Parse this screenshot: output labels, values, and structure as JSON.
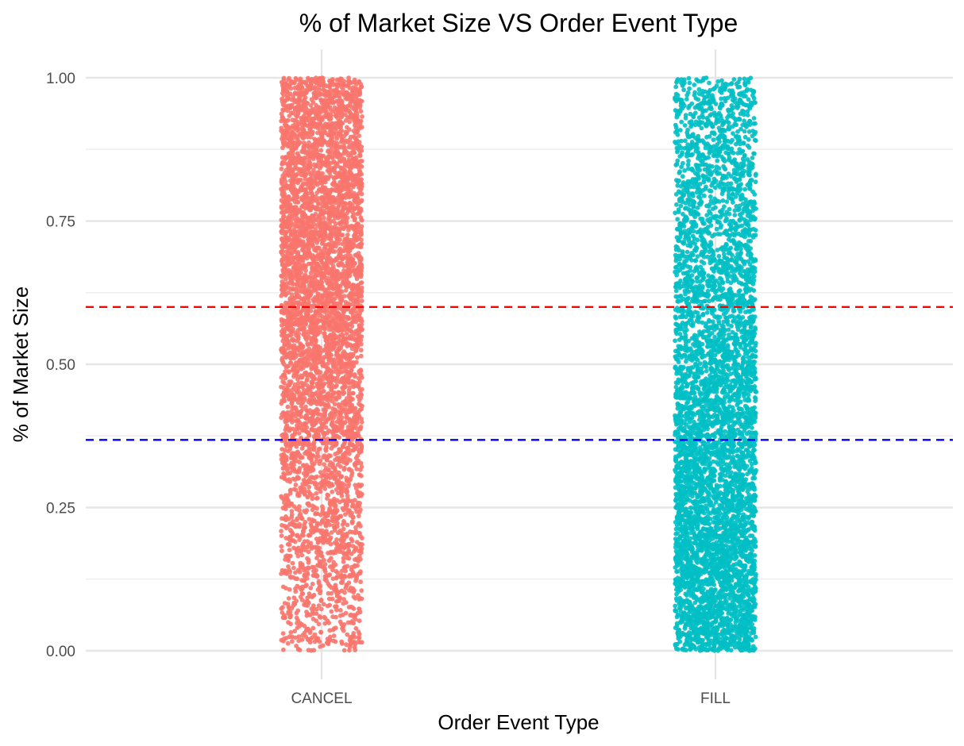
{
  "chart_data": {
    "type": "scatter",
    "subtype": "jitter-strip",
    "title": "% of Market Size VS Order Event Type",
    "xlabel": "Order Event Type",
    "ylabel": "% of Market Size",
    "categories": [
      "CANCEL",
      "FILL"
    ],
    "ylim": [
      0,
      1
    ],
    "yticks": [
      {
        "value": 0.0,
        "label": "0.00"
      },
      {
        "value": 0.25,
        "label": "0.25"
      },
      {
        "value": 0.5,
        "label": "0.50"
      },
      {
        "value": 0.75,
        "label": "0.75"
      },
      {
        "value": 1.0,
        "label": "1.00"
      }
    ],
    "series": [
      {
        "name": "CANCEL",
        "color": "#F8766D",
        "value_range": [
          0.0,
          1.0
        ],
        "density_profile": [
          {
            "y": 0.05,
            "density": 0.35
          },
          {
            "y": 0.25,
            "density": 0.5
          },
          {
            "y": 0.4,
            "density": 0.75
          },
          {
            "y": 0.6,
            "density": 1.0
          },
          {
            "y": 0.8,
            "density": 1.0
          },
          {
            "y": 0.95,
            "density": 0.9
          }
        ]
      },
      {
        "name": "FILL",
        "color": "#00BFC4",
        "value_range": [
          0.0,
          1.0
        ],
        "density_profile": [
          {
            "y": 0.05,
            "density": 1.0
          },
          {
            "y": 0.25,
            "density": 0.95
          },
          {
            "y": 0.45,
            "density": 0.85
          },
          {
            "y": 0.65,
            "density": 0.6
          },
          {
            "y": 0.85,
            "density": 0.45
          },
          {
            "y": 0.98,
            "density": 0.4
          }
        ]
      }
    ],
    "reference_lines": [
      {
        "name": "red-dashed-line",
        "y": 0.6,
        "color": "#FF0000",
        "style": "dashed"
      },
      {
        "name": "blue-dashed-line",
        "y": 0.368,
        "color": "#0000FF",
        "style": "dashed"
      }
    ],
    "grid": true
  }
}
